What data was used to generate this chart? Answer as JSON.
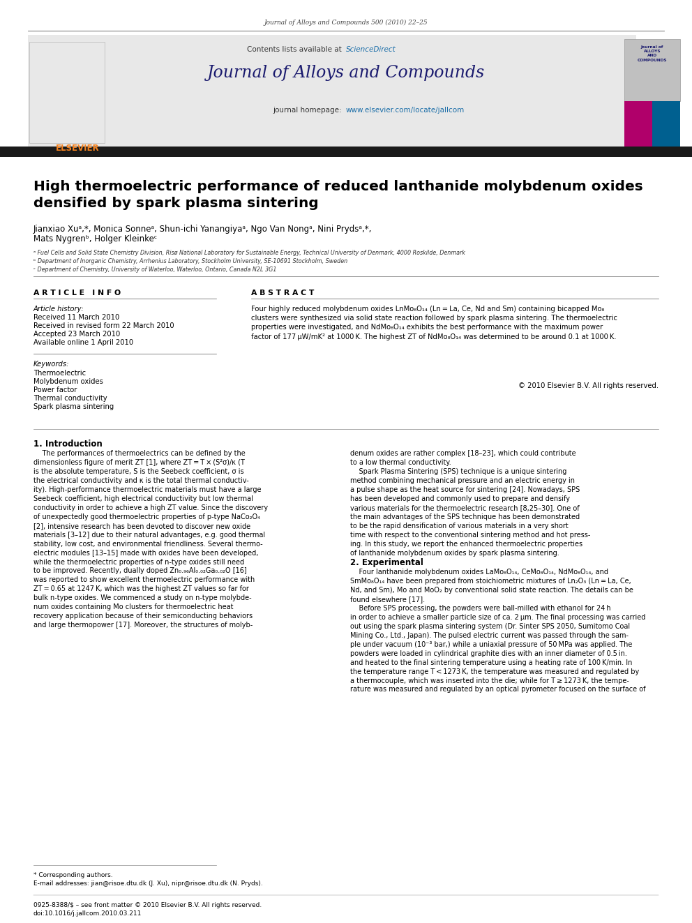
{
  "page_width": 9.92,
  "page_height": 13.23,
  "bg_color": "#ffffff",
  "journal_ref": "Journal of Alloys and Compounds 500 (2010) 22–25",
  "journal_name": "Journal of Alloys and Compounds",
  "contents_available": "Contents lists available at ScienceDirect",
  "header_bg": "#e8e8e8",
  "title": "High thermoelectric performance of reduced lanthanide molybdenum oxides\ndensified by spark plasma sintering",
  "authors_line1": "Jianxiao Xuᵃ,*, Monica Sonneᵃ, Shun-ichi Yanangiyaᵃ, Ngo Van Nongᵃ, Nini Prydsᵃ,*,",
  "authors_line2": "Mats Nygrenᵇ, Holger Kleinkeᶜ",
  "affil_a": "ᵃ Fuel Cells and Solid State Chemistry Division, Risø National Laboratory for Sustainable Energy, Technical University of Denmark, 4000 Roskilde, Denmark",
  "affil_b": "ᵇ Department of Inorganic Chemistry, Arrhenius Laboratory, Stockholm University, SE-10691 Stockholm, Sweden",
  "affil_c": "ᶜ Department of Chemistry, University of Waterloo, Waterloo, Ontario, Canada N2L 3G1",
  "article_info_header": "A R T I C L E   I N F O",
  "abstract_header": "A B S T R A C T",
  "article_history_label": "Article history:",
  "received": "Received 11 March 2010",
  "received_revised": "Received in revised form 22 March 2010",
  "accepted": "Accepted 23 March 2010",
  "available_online": "Available online 1 April 2010",
  "keywords_label": "Keywords:",
  "keywords": [
    "Thermoelectric",
    "Molybdenum oxides",
    "Power factor",
    "Thermal conductivity",
    "Spark plasma sintering"
  ],
  "abstract_text": "Four highly reduced molybdenum oxides LnMo₈O₁₄ (Ln = La, Ce, Nd and Sm) containing bicapped Mo₈\nclusters were synthesized via solid state reaction followed by spark plasma sintering. The thermoelectric\nproperties were investigated, and NdMo₈O₁₄ exhibits the best performance with the maximum power\nfactor of 177 μW/mK² at 1000 K. The highest ZT of NdMo₈O₁₄ was determined to be around 0.1 at 1000 K.",
  "copyright": "© 2010 Elsevier B.V. All rights reserved.",
  "intro_header": "1. Introduction",
  "intro_text_left": "    The performances of thermoelectrics can be defined by the\ndimensionless figure of merit ZT [1], where ZT = T × (S²σ)/κ (T\nis the absolute temperature, S is the Seebeck coefficient, σ is\nthe electrical conductivity and κ is the total thermal conductiv-\nity). High-performance thermoelectric materials must have a large\nSeebeck coefficient, high electrical conductivity but low thermal\nconductivity in order to achieve a high ZT value. Since the discovery\nof unexpectedly good thermoelectric properties of p-type NaCo₂O₄\n[2], intensive research has been devoted to discover new oxide\nmaterials [3–12] due to their natural advantages, e.g. good thermal\nstability, low cost, and environmental friendliness. Several thermo-\nelectric modules [13–15] made with oxides have been developed,\nwhile the thermoelectric properties of n-type oxides still need\nto be improved. Recently, dually doped Zn₀.₉₆Al₀.₀₂Ga₀.₀₂O [16]\nwas reported to show excellent thermoelectric performance with\nZT = 0.65 at 1247 K, which was the highest ZT values so far for\nbulk n-type oxides. We commenced a study on n-type molybde-\nnum oxides containing Mo clusters for thermoelectric heat\nrecovery application because of their semiconducting behaviors\nand large thermopower [17]. Moreover, the structures of molyb-",
  "intro_text_right": "denum oxides are rather complex [18–23], which could contribute\nto a low thermal conductivity.\n    Spark Plasma Sintering (SPS) technique is a unique sintering\nmethod combining mechanical pressure and an electric energy in\na pulse shape as the heat source for sintering [24]. Nowadays, SPS\nhas been developed and commonly used to prepare and densify\nvarious materials for the thermoelectric research [8,25–30]. One of\nthe main advantages of the SPS technique has been demonstrated\nto be the rapid densification of various materials in a very short\ntime with respect to the conventional sintering method and hot press-\ning. In this study, we report the enhanced thermoelectric properties\nof lanthanide molybdenum oxides by spark plasma sintering.",
  "exp_header": "2. Experimental",
  "exp_text": "    Four lanthanide molybdenum oxides LaMo₈O₁₄, CeMo₈O₁₄, NdMo₈O₁₄, and\nSmMo₈O₁₄ have been prepared from stoichiometric mixtures of Ln₂O₃ (Ln = La, Ce,\nNd, and Sm), Mo and MoO₂ by conventional solid state reaction. The details can be\nfound elsewhere [17].\n    Before SPS processing, the powders were ball-milled with ethanol for 24 h\nin order to achieve a smaller particle size of ca. 2 μm. The final processing was carried\nout using the spark plasma sintering system (Dr. Sinter SPS 2050, Sumitomo Coal\nMining Co., Ltd., Japan). The pulsed electric current was passed through the sam-\nple under vacuum (10⁻³ bar,) while a uniaxial pressure of 50 MPa was applied. The\npowders were loaded in cylindrical graphite dies with an inner diameter of 0.5 in.\nand heated to the final sintering temperature using a heating rate of 100 K/min. In\nthe temperature range T < 1273 K, the temperature was measured and regulated by\na thermocouple, which was inserted into the die; while for T ≥ 1273 K, the tempe-\nrature was measured and regulated by an optical pyrometer focused on the surface of",
  "footer_corr": "* Corresponding authors.",
  "footer_email": "E-mail addresses: jian@risoe.dtu.dk (J. Xu), nipr@risoe.dtu.dk (N. Pryds).",
  "footer_issn": "0925-8388/$ – see front matter © 2010 Elsevier B.V. All rights reserved.",
  "footer_doi": "doi:10.1016/j.jallcom.2010.03.211",
  "sdirect_color": "#1a6da8",
  "homepage_color": "#1a6da8",
  "elsevier_orange": "#f5821f",
  "cover_pink": "#b0006a",
  "cover_blue": "#006090",
  "cover_gray": "#c0c0c0",
  "journal_cover_text": "Journal of\nALLOYS\nAND\nCOMPOUNDS"
}
